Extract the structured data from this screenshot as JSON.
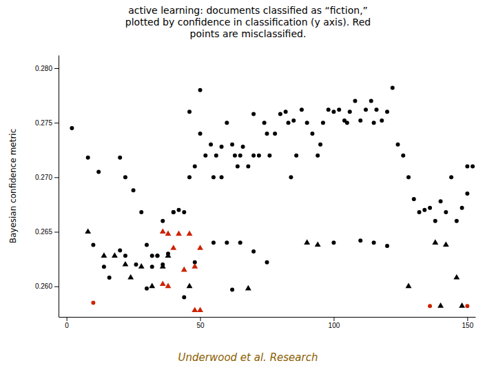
{
  "chart_data": {
    "type": "scatter",
    "title": "active learning: documents classified as “fiction,”\nplotted by confidence in classification (y axis). Red\npoints are misclassified.",
    "ylabel": "Bayesian confidence metric",
    "annotations": [
      {
        "text": "Underwood et al. Research",
        "color": "#8B6000"
      }
    ],
    "xlim": [
      -3,
      153
    ],
    "ylim": [
      0.2572,
      0.2812
    ],
    "xticks": [
      0,
      50,
      100,
      150
    ],
    "yticks": [
      {
        "value": 0.26,
        "label": "0.260"
      },
      {
        "value": 0.265,
        "label": "0.265"
      },
      {
        "value": 0.27,
        "label": "0.270"
      },
      {
        "value": 0.275,
        "label": "0.275"
      },
      {
        "value": 0.28,
        "label": "0.280"
      }
    ],
    "grid": false,
    "series": [
      {
        "color": "#000000",
        "marker": "circle",
        "x": [
          2,
          8,
          12,
          20,
          22,
          25,
          28,
          30,
          32,
          34,
          36,
          38,
          40,
          42,
          44,
          46,
          46,
          48,
          50,
          50,
          52,
          54,
          55,
          56,
          58,
          58,
          60,
          62,
          63,
          64,
          65,
          66,
          68,
          70,
          70,
          72,
          74,
          75,
          76,
          78,
          80,
          82,
          83,
          84,
          85,
          86,
          88,
          90,
          92,
          94,
          95,
          96,
          98,
          100,
          102,
          104,
          105,
          106,
          108,
          110,
          112,
          114,
          115,
          116,
          118,
          120,
          122,
          124,
          126,
          128,
          130,
          132,
          134,
          136,
          138,
          140,
          142,
          144,
          146,
          148,
          150,
          48,
          55,
          60,
          65,
          70,
          75,
          100,
          110,
          115,
          120,
          30,
          62,
          150,
          152,
          10,
          14,
          16,
          20,
          22,
          26,
          32,
          34,
          36,
          40,
          44
        ],
        "values": [
          0.2745,
          0.2718,
          0.2705,
          0.2718,
          0.27,
          0.2688,
          0.2668,
          0.2638,
          0.2628,
          0.2628,
          0.262,
          0.263,
          0.2668,
          0.267,
          0.2668,
          0.276,
          0.27,
          0.271,
          0.278,
          0.274,
          0.272,
          0.273,
          0.27,
          0.272,
          0.2728,
          0.27,
          0.275,
          0.273,
          0.272,
          0.271,
          0.272,
          0.2728,
          0.271,
          0.2758,
          0.272,
          0.272,
          0.275,
          0.274,
          0.272,
          0.274,
          0.2758,
          0.276,
          0.275,
          0.27,
          0.2752,
          0.272,
          0.2762,
          0.275,
          0.274,
          0.272,
          0.273,
          0.275,
          0.2762,
          0.276,
          0.2762,
          0.2752,
          0.275,
          0.276,
          0.277,
          0.2752,
          0.2762,
          0.277,
          0.275,
          0.2762,
          0.2752,
          0.276,
          0.2782,
          0.273,
          0.272,
          0.27,
          0.268,
          0.2668,
          0.267,
          0.2672,
          0.266,
          0.2678,
          0.2668,
          0.27,
          0.266,
          0.2672,
          0.271,
          0.2622,
          0.264,
          0.264,
          0.264,
          0.2632,
          0.2622,
          0.264,
          0.2642,
          0.264,
          0.2637,
          0.2598,
          0.2597,
          0.2685,
          0.271,
          0.2638,
          0.2618,
          0.2608,
          0.2633,
          0.2628,
          0.262,
          0.2618,
          0.2628,
          0.266,
          0.2668,
          0.259
        ]
      },
      {
        "color": "#000000",
        "marker": "triangle",
        "x": [
          8,
          14,
          18,
          22,
          24,
          28,
          32,
          36,
          38,
          46,
          68,
          90,
          94,
          128,
          146,
          140,
          148,
          138,
          142
        ],
        "values": [
          0.265,
          0.2628,
          0.2628,
          0.262,
          0.2608,
          0.2618,
          0.26,
          0.2618,
          0.2628,
          0.26,
          0.2598,
          0.264,
          0.2638,
          0.26,
          0.2608,
          0.2582,
          0.2582,
          0.264,
          0.2638
        ]
      },
      {
        "color": "#CC2200",
        "marker": "circle",
        "x": [
          10,
          136,
          150
        ],
        "values": [
          0.2585,
          0.2582,
          0.2582
        ]
      },
      {
        "color": "#CC2200",
        "marker": "triangle",
        "x": [
          36,
          38,
          40,
          42,
          44,
          46,
          48,
          50,
          48,
          50,
          36,
          38
        ],
        "values": [
          0.265,
          0.2648,
          0.2635,
          0.2648,
          0.2615,
          0.2648,
          0.2618,
          0.2635,
          0.2578,
          0.2578,
          0.2602,
          0.26
        ]
      }
    ]
  }
}
